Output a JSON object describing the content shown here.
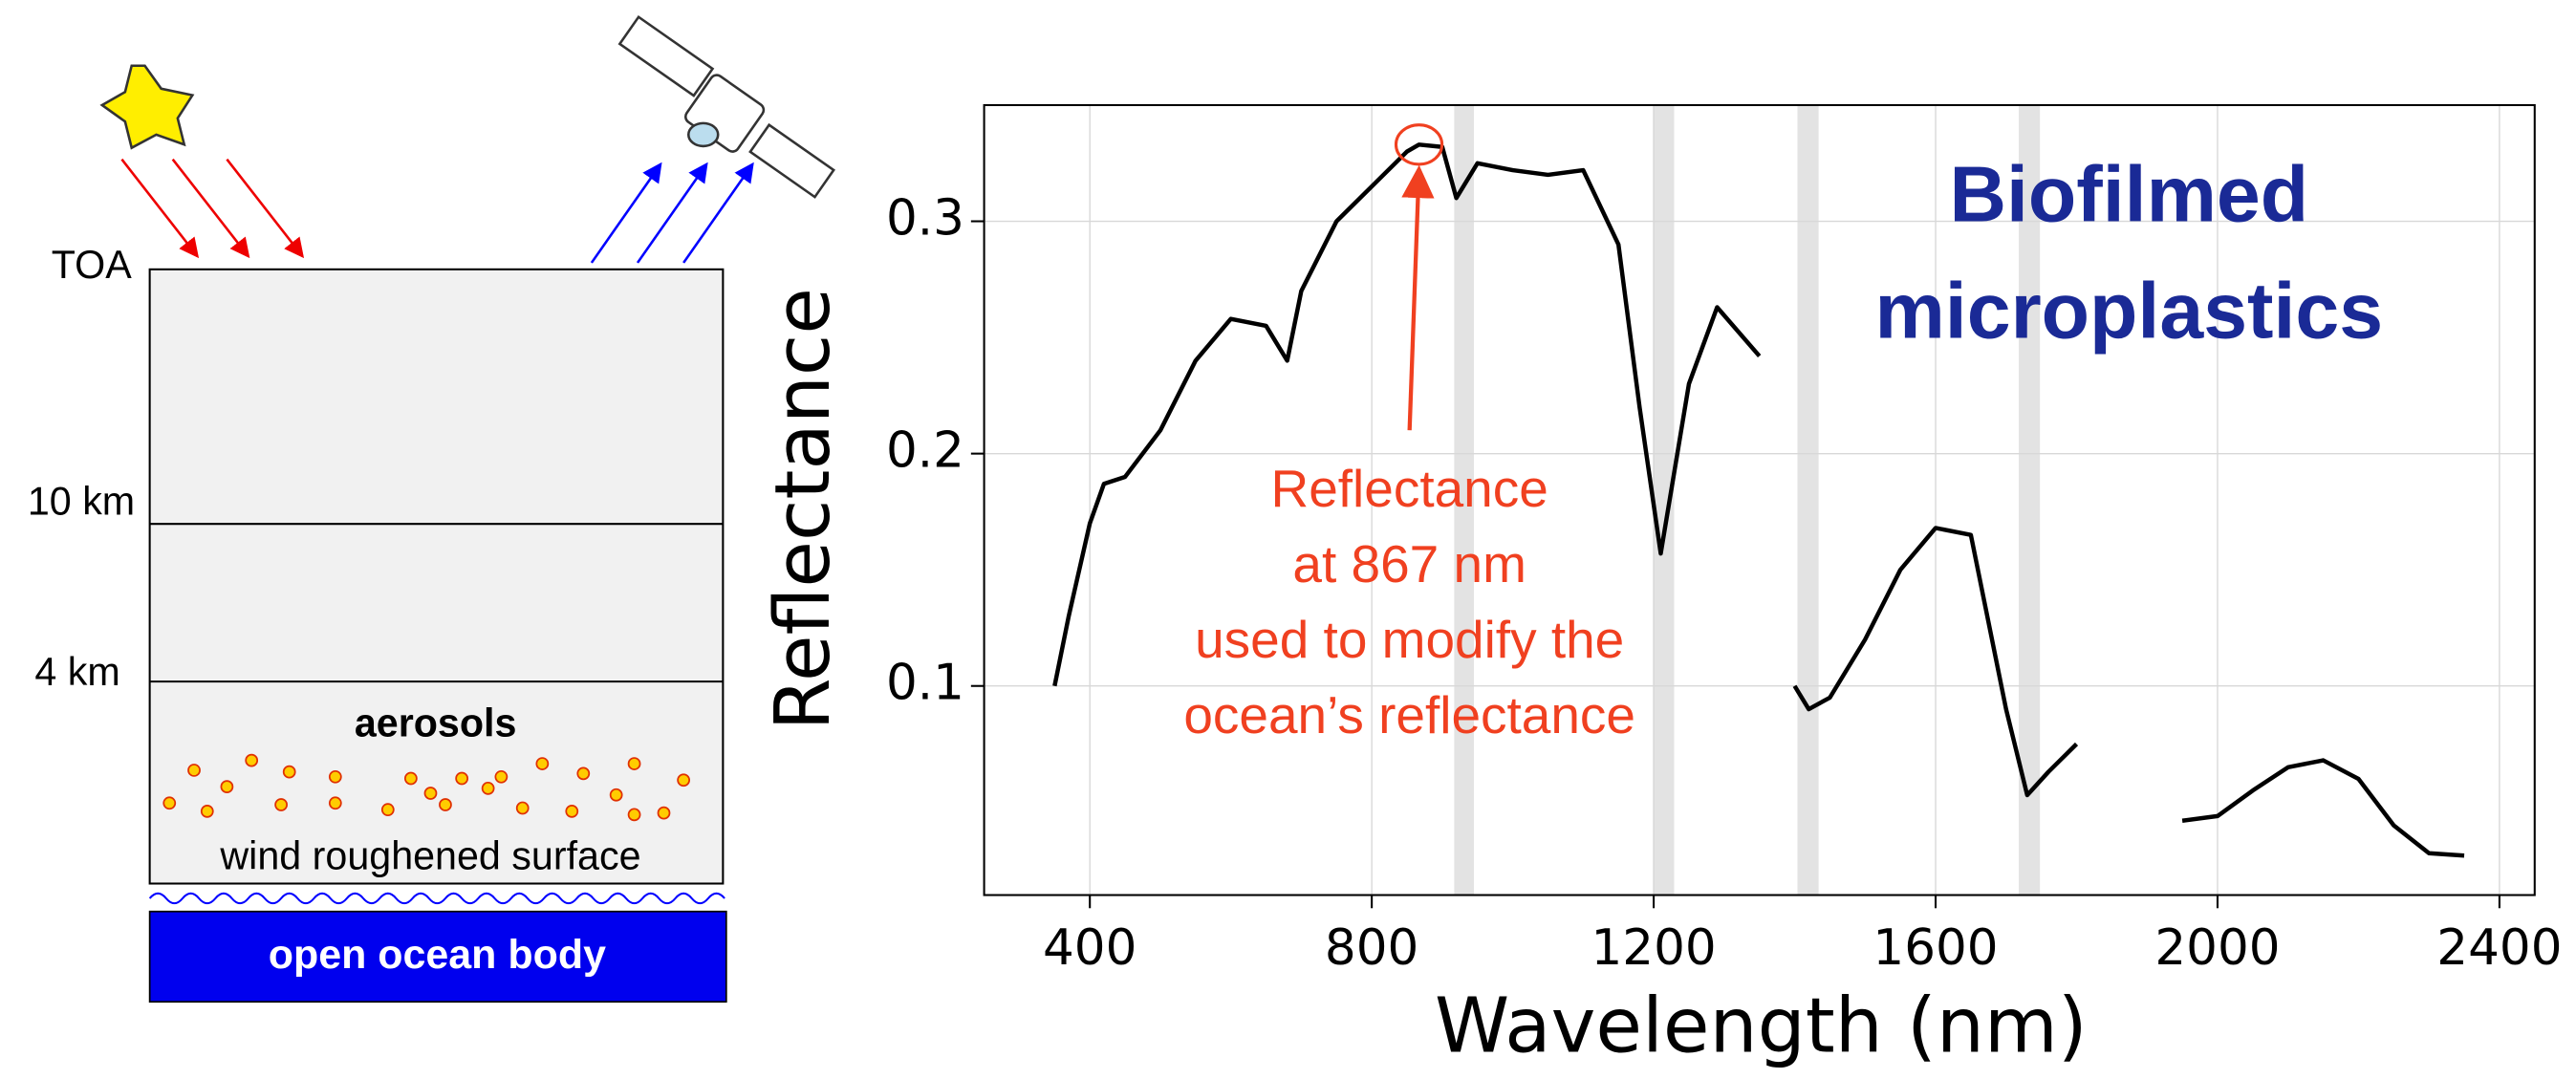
{
  "chart_data": {
    "type": "line",
    "title": [
      "Biofilmed",
      "microplastics"
    ],
    "x_label": "Wavelength (nm)",
    "y_label": "Reflectance",
    "x": [
      350,
      370,
      400,
      420,
      450,
      500,
      550,
      600,
      650,
      680,
      700,
      750,
      800,
      850,
      867,
      900,
      920,
      950,
      1000,
      1050,
      1100,
      1150,
      1180,
      1210,
      1250,
      1290,
      1350,
      null,
      1400,
      1420,
      1450,
      1500,
      1550,
      1600,
      1650,
      1700,
      1730,
      1760,
      1800,
      null,
      1950,
      2000,
      2050,
      2100,
      2150,
      2200,
      2250,
      2300,
      2350
    ],
    "values": [
      0.1,
      0.13,
      0.17,
      0.187,
      0.19,
      0.21,
      0.24,
      0.258,
      0.255,
      0.24,
      0.27,
      0.3,
      0.315,
      0.33,
      0.333,
      0.332,
      0.31,
      0.325,
      0.322,
      0.32,
      0.322,
      0.29,
      0.22,
      0.157,
      0.23,
      0.263,
      0.242,
      null,
      0.1,
      0.09,
      0.095,
      0.12,
      0.15,
      0.168,
      0.165,
      0.09,
      0.053,
      0.063,
      0.075,
      null,
      0.042,
      0.044,
      0.055,
      0.065,
      0.068,
      0.06,
      0.04,
      0.028,
      0.027
    ],
    "color": "#000000",
    "bands": [
      [
        917,
        945
      ],
      [
        1199,
        1229
      ],
      [
        1404,
        1434
      ],
      [
        1718,
        1748
      ]
    ],
    "xlim": [
      250,
      2450
    ],
    "ylim": [
      0.01,
      0.35
    ],
    "xticks": [
      400,
      800,
      1200,
      1600,
      2000,
      2400
    ],
    "yticks": [
      0.1,
      0.2,
      0.3
    ],
    "grid": true,
    "annotation": {
      "text": [
        "Reflectance",
        "at 867 nm",
        "used to modify the",
        "ocean’s reflectance"
      ],
      "x": 867,
      "y": 0.333
    }
  },
  "diagram": {
    "altitude_labels": [
      "TOA",
      "10 km",
      "4 km"
    ],
    "aerosols": "aerosols",
    "surface": "wind roughened surface",
    "ocean": "open ocean body"
  }
}
